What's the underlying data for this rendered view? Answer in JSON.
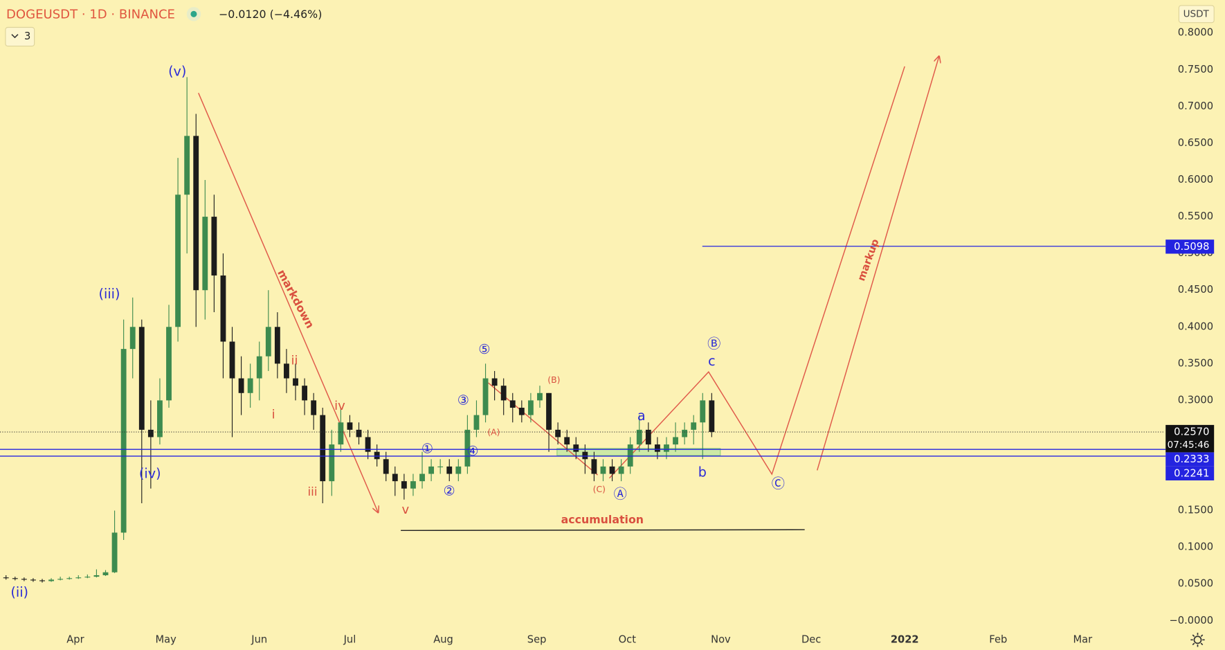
{
  "chart_data": {
    "type": "candlestick",
    "symbol": "DOGEUSDT · 1D · BINANCE",
    "change": "−0.0120 (−4.46%)",
    "indicators": "3",
    "currency": "USDT",
    "x": [
      68,
      71,
      74,
      77,
      80,
      83,
      86,
      89,
      92,
      95,
      98,
      101,
      104,
      107,
      110,
      113,
      116,
      119,
      122,
      125,
      128,
      131,
      134,
      137,
      140,
      143,
      146,
      149,
      152,
      155,
      158,
      161,
      164,
      167,
      170,
      173,
      176,
      179,
      182,
      185,
      188,
      191,
      194,
      197,
      200,
      203,
      206,
      209,
      212,
      215,
      218,
      221,
      224,
      227,
      230,
      233,
      236,
      239,
      242,
      245,
      248,
      251,
      254,
      257,
      260,
      263,
      266,
      269,
      272,
      275,
      278,
      281,
      284,
      287,
      290,
      293,
      296,
      299,
      302
    ],
    "open": [
      0.059,
      0.058,
      0.057,
      0.056,
      0.055,
      0.054,
      0.056,
      0.057,
      0.058,
      0.059,
      0.06,
      0.062,
      0.066,
      0.12,
      0.37,
      0.4,
      0.26,
      0.25,
      0.3,
      0.4,
      0.58,
      0.66,
      0.45,
      0.55,
      0.47,
      0.38,
      0.33,
      0.31,
      0.33,
      0.36,
      0.4,
      0.35,
      0.33,
      0.32,
      0.3,
      0.28,
      0.19,
      0.24,
      0.27,
      0.26,
      0.25,
      0.23,
      0.22,
      0.2,
      0.19,
      0.18,
      0.19,
      0.2,
      0.21,
      0.21,
      0.2,
      0.21,
      0.26,
      0.28,
      0.33,
      0.32,
      0.3,
      0.29,
      0.28,
      0.3,
      0.31,
      0.26,
      0.25,
      0.24,
      0.23,
      0.22,
      0.2,
      0.21,
      0.2,
      0.21,
      0.24,
      0.26,
      0.24,
      0.23,
      0.24,
      0.25,
      0.26,
      0.27,
      0.3
    ],
    "high": [
      0.062,
      0.06,
      0.059,
      0.058,
      0.057,
      0.058,
      0.06,
      0.06,
      0.062,
      0.063,
      0.07,
      0.069,
      0.15,
      0.41,
      0.44,
      0.41,
      0.3,
      0.33,
      0.43,
      0.63,
      0.74,
      0.69,
      0.6,
      0.58,
      0.5,
      0.4,
      0.36,
      0.35,
      0.38,
      0.45,
      0.42,
      0.37,
      0.35,
      0.33,
      0.31,
      0.29,
      0.26,
      0.29,
      0.28,
      0.27,
      0.26,
      0.24,
      0.23,
      0.21,
      0.2,
      0.2,
      0.23,
      0.22,
      0.22,
      0.22,
      0.22,
      0.28,
      0.3,
      0.35,
      0.34,
      0.33,
      0.31,
      0.3,
      0.31,
      0.32,
      0.31,
      0.27,
      0.26,
      0.25,
      0.24,
      0.23,
      0.22,
      0.22,
      0.22,
      0.25,
      0.28,
      0.27,
      0.25,
      0.25,
      0.27,
      0.27,
      0.28,
      0.31,
      0.31
    ],
    "low": [
      0.056,
      0.055,
      0.054,
      0.053,
      0.052,
      0.053,
      0.055,
      0.056,
      0.057,
      0.058,
      0.059,
      0.061,
      0.065,
      0.11,
      0.33,
      0.16,
      0.18,
      0.24,
      0.29,
      0.38,
      0.5,
      0.4,
      0.41,
      0.42,
      0.33,
      0.25,
      0.28,
      0.29,
      0.3,
      0.34,
      0.33,
      0.31,
      0.3,
      0.28,
      0.26,
      0.16,
      0.17,
      0.23,
      0.25,
      0.24,
      0.22,
      0.21,
      0.19,
      0.17,
      0.165,
      0.17,
      0.18,
      0.19,
      0.2,
      0.19,
      0.19,
      0.2,
      0.25,
      0.27,
      0.3,
      0.28,
      0.27,
      0.27,
      0.27,
      0.29,
      0.23,
      0.24,
      0.23,
      0.22,
      0.2,
      0.19,
      0.19,
      0.19,
      0.19,
      0.2,
      0.23,
      0.23,
      0.22,
      0.22,
      0.23,
      0.24,
      0.24,
      0.22,
      0.25
    ],
    "close": [
      0.058,
      0.057,
      0.056,
      0.055,
      0.054,
      0.056,
      0.057,
      0.058,
      0.059,
      0.06,
      0.062,
      0.066,
      0.12,
      0.37,
      0.4,
      0.26,
      0.25,
      0.3,
      0.4,
      0.58,
      0.66,
      0.45,
      0.55,
      0.47,
      0.38,
      0.33,
      0.31,
      0.33,
      0.36,
      0.4,
      0.35,
      0.33,
      0.32,
      0.3,
      0.28,
      0.19,
      0.24,
      0.27,
      0.26,
      0.25,
      0.23,
      0.22,
      0.2,
      0.19,
      0.18,
      0.19,
      0.2,
      0.21,
      0.21,
      0.2,
      0.21,
      0.26,
      0.28,
      0.33,
      0.32,
      0.3,
      0.29,
      0.28,
      0.3,
      0.31,
      0.26,
      0.25,
      0.24,
      0.23,
      0.22,
      0.2,
      0.21,
      0.2,
      0.21,
      0.24,
      0.26,
      0.24,
      0.23,
      0.24,
      0.25,
      0.26,
      0.27,
      0.3,
      0.257
    ],
    "up_color": "#3d8b4f",
    "down_color": "#1c1c1c",
    "xlim": [
      66,
      452
    ],
    "ylim": [
      -0.01,
      0.845
    ],
    "xticks": [
      {
        "value": 91,
        "label": "Apr"
      },
      {
        "value": 121,
        "label": "May"
      },
      {
        "value": 152,
        "label": "Jun"
      },
      {
        "value": 182,
        "label": "Jul"
      },
      {
        "value": 213,
        "label": "Aug"
      },
      {
        "value": 244,
        "label": "Sep"
      },
      {
        "value": 274,
        "label": "Oct"
      },
      {
        "value": 305,
        "label": "Nov"
      },
      {
        "value": 335,
        "label": "Dec"
      },
      {
        "value": 366,
        "label": "2022"
      },
      {
        "value": 397,
        "label": "Feb"
      },
      {
        "value": 425,
        "label": "Mar"
      }
    ],
    "yticks": [
      {
        "value": 0.8,
        "label": "0.8000"
      },
      {
        "value": 0.75,
        "label": "0.7500"
      },
      {
        "value": 0.7,
        "label": "0.7000"
      },
      {
        "value": 0.65,
        "label": "0.6500"
      },
      {
        "value": 0.6,
        "label": "0.6000"
      },
      {
        "value": 0.55,
        "label": "0.5500"
      },
      {
        "value": 0.5,
        "label": "0.5000"
      },
      {
        "value": 0.45,
        "label": "0.4500"
      },
      {
        "value": 0.4,
        "label": "0.4000"
      },
      {
        "value": 0.35,
        "label": "0.3500"
      },
      {
        "value": 0.3,
        "label": "0.3000"
      },
      {
        "value": 0.15,
        "label": "0.1500"
      },
      {
        "value": 0.1,
        "label": "0.1000"
      },
      {
        "value": 0.05,
        "label": "0.0500"
      },
      {
        "value": 0,
        "label": "−0.0000"
      }
    ],
    "grid": false,
    "levels": [
      0.5098,
      0.2333,
      0.2241
    ],
    "level_color": "#2424e0",
    "last_price": {
      "value": 0.257,
      "label": "0.2570"
    },
    "countdown": "07:45:46",
    "annotations": [
      {
        "text": "(v)",
        "color": "#2b2bd6"
      },
      {
        "text": "(iii)",
        "color": "#2b2bd6"
      },
      {
        "text": "(iv)",
        "color": "#2b2bd6"
      },
      {
        "text": "(ii)",
        "color": "#2b2bd6"
      },
      {
        "text": "markdown",
        "color": "#d9503f"
      },
      {
        "text": "ii",
        "color": "#d9503f"
      },
      {
        "text": "i",
        "color": "#d9503f"
      },
      {
        "text": "iv",
        "color": "#d9503f"
      },
      {
        "text": "iii",
        "color": "#d9503f"
      },
      {
        "text": "v",
        "color": "#d9503f"
      },
      {
        "text": "①",
        "color": "#2b2bd6"
      },
      {
        "text": "②",
        "color": "#2b2bd6"
      },
      {
        "text": "③",
        "color": "#2b2bd6"
      },
      {
        "text": "④",
        "color": "#2b2bd6"
      },
      {
        "text": "⑤",
        "color": "#2b2bd6"
      },
      {
        "text": "(A)",
        "color": "#d9503f"
      },
      {
        "text": "(B)",
        "color": "#d9503f"
      },
      {
        "text": "(C)",
        "color": "#d9503f"
      },
      {
        "text": "Ⓐ",
        "color": "#2b2bd6"
      },
      {
        "text": "a",
        "color": "#2b2bd6"
      },
      {
        "text": "b",
        "color": "#2b2bd6"
      },
      {
        "text": "c",
        "color": "#2b2bd6"
      },
      {
        "text": "Ⓑ",
        "color": "#2b2bd6"
      },
      {
        "text": "Ⓒ",
        "color": "#2b2bd6"
      },
      {
        "text": "accumulation",
        "color": "#d9503f"
      },
      {
        "text": "markup",
        "color": "#d9503f"
      }
    ]
  }
}
